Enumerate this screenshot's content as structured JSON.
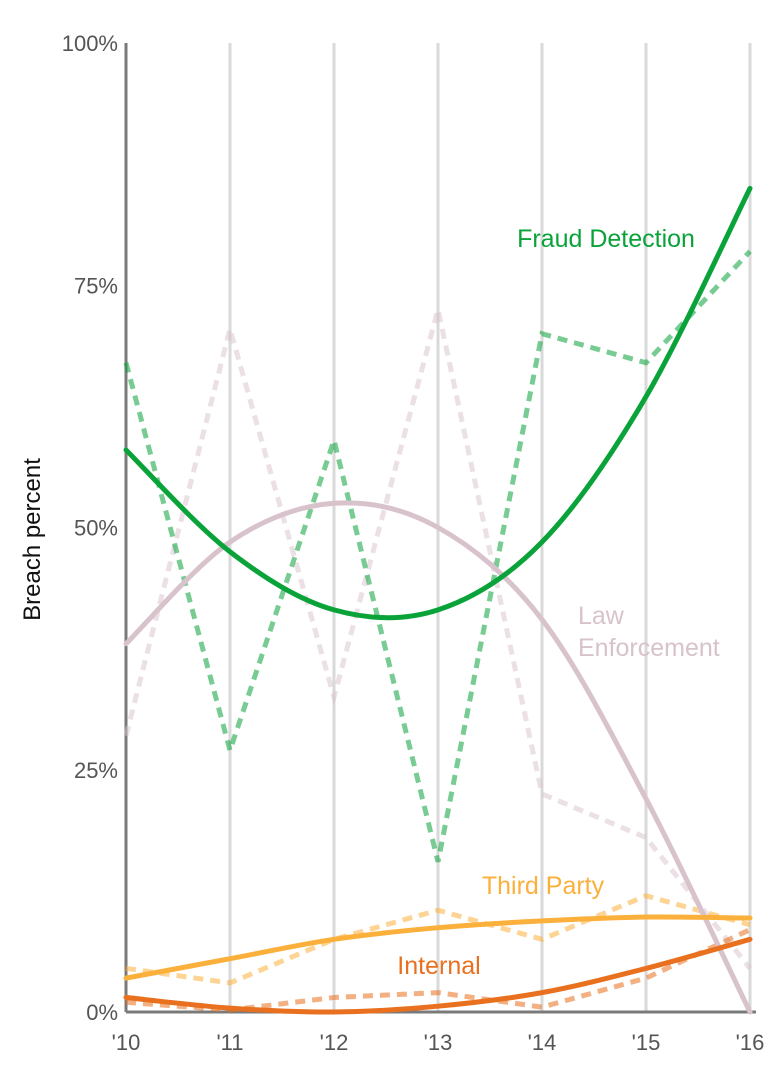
{
  "chart_data": {
    "type": "line",
    "title": "",
    "xlabel": "",
    "ylabel": "Breach percent",
    "x": [
      "'10",
      "'11",
      "'12",
      "'13",
      "'14",
      "'15",
      "'16"
    ],
    "x_tick_labels": [
      "'10",
      "'11",
      "'12",
      "'13",
      "'14",
      "'15",
      "'16"
    ],
    "y_tick_labels": [
      "0%",
      "25%",
      "50%",
      "75%",
      "100%"
    ],
    "y_ticks": [
      0,
      25,
      50,
      75,
      100
    ],
    "ylim": [
      0,
      100
    ],
    "grid": "vertical",
    "series": [
      {
        "name": "Fraud Detection",
        "label_lines": [
          "Fraud Detection"
        ],
        "color": "#0aa33a",
        "values": [
          67,
          27,
          59,
          15.5,
          70,
          67,
          78.5
        ],
        "trend": [
          58,
          47.5,
          41.5,
          41.5,
          48.5,
          63.5,
          85
        ]
      },
      {
        "name": "Law Enforcement",
        "label_lines": [
          "Law",
          "Enforcement"
        ],
        "color": "#d8c2cc",
        "values": [
          28.5,
          70.5,
          32.5,
          72.5,
          22.5,
          18,
          4.5
        ],
        "trend": [
          38,
          48.5,
          52.5,
          50,
          40.5,
          22,
          0
        ]
      },
      {
        "name": "Third Party",
        "label_lines": [
          "Third Party"
        ],
        "color": "#fbb03b",
        "values": [
          4.5,
          3,
          7.5,
          10.5,
          7.5,
          12,
          9
        ],
        "trend": [
          3.5,
          5.5,
          7.5,
          8.7,
          9.4,
          9.8,
          9.7
        ]
      },
      {
        "name": "Internal",
        "label_lines": [
          "Internal"
        ],
        "color": "#e8701e",
        "values": [
          1,
          0.2,
          1.5,
          2,
          0.5,
          3.5,
          8.5
        ],
        "trend": [
          1.5,
          0.4,
          0,
          0.6,
          2,
          4.5,
          7.5
        ]
      }
    ]
  }
}
